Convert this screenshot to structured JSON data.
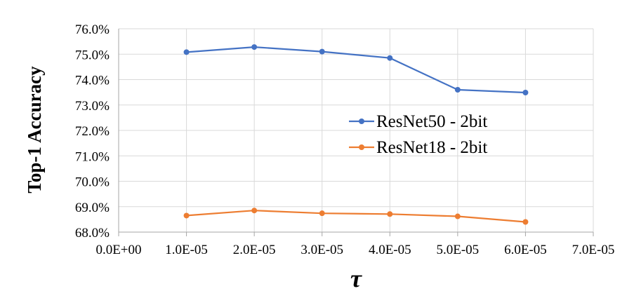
{
  "chart_data": {
    "type": "line",
    "xlabel": "τ",
    "ylabel": "Top-1 Accuracy",
    "xlim": [
      0,
      7e-05
    ],
    "ylim": [
      68.0,
      76.0
    ],
    "x_ticks": [
      "0.0E+00",
      "1.0E-05",
      "2.0E-05",
      "3.0E-05",
      "4.0E-05",
      "5.0E-05",
      "6.0E-05",
      "7.0E-05"
    ],
    "y_ticks": [
      "68.0%",
      "69.0%",
      "70.0%",
      "71.0%",
      "72.0%",
      "73.0%",
      "74.0%",
      "75.0%",
      "76.0%"
    ],
    "grid": true,
    "legend_position": "center-right",
    "x": [
      1e-05,
      2e-05,
      3e-05,
      4e-05,
      5e-05,
      6e-05
    ],
    "series": [
      {
        "name": "ResNet50 - 2bit",
        "color": "#4472C4",
        "values": [
          75.08,
          75.28,
          75.1,
          74.85,
          73.6,
          73.49
        ]
      },
      {
        "name": "ResNet18 - 2bit",
        "color": "#ED7D31",
        "values": [
          68.65,
          68.85,
          68.74,
          68.71,
          68.62,
          68.4
        ]
      }
    ]
  }
}
